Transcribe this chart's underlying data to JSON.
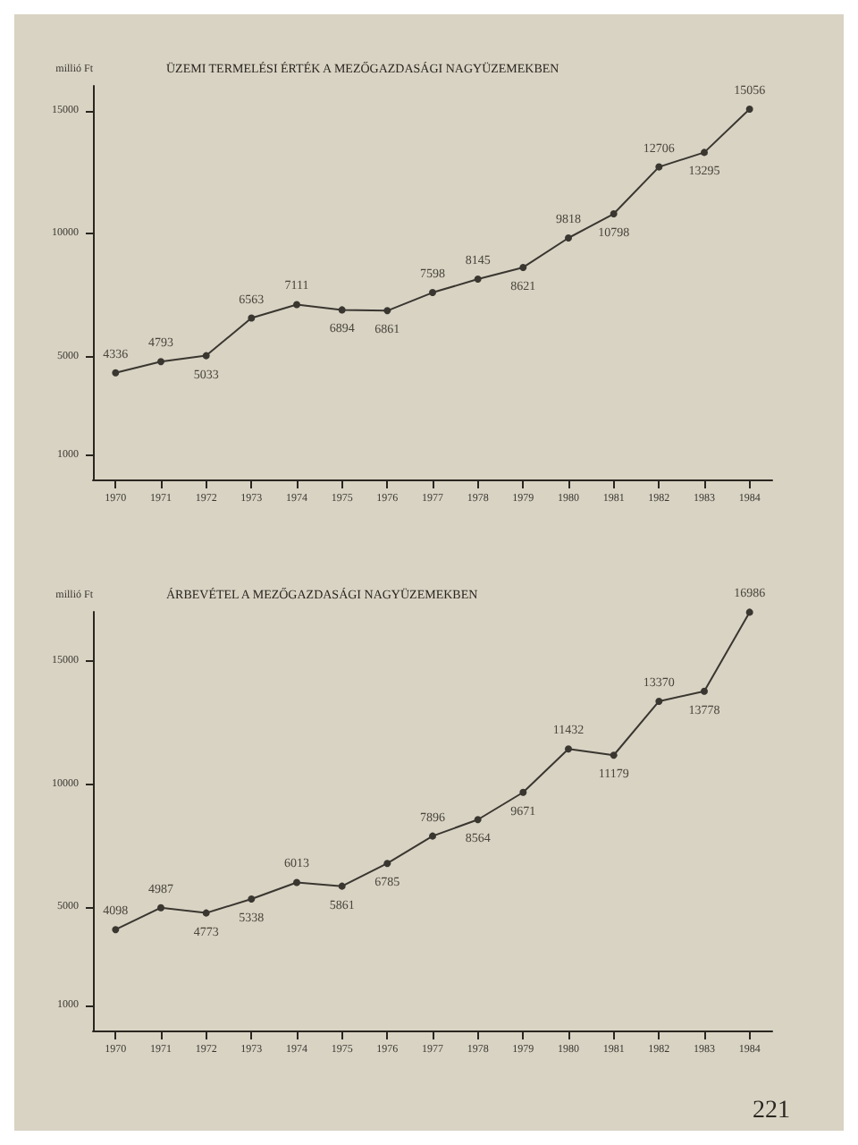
{
  "chart_data": [
    {
      "type": "line",
      "title": "ÜZEMI TERMELÉSI ÉRTÉK A MEZŐGAZDASÁGI NAGYÜZEMEKBEN",
      "ylabel": "millió Ft",
      "categories": [
        "1970",
        "1971",
        "1972",
        "1973",
        "1974",
        "1975",
        "1976",
        "1977",
        "1978",
        "1979",
        "1980",
        "1981",
        "1982",
        "1983",
        "1984"
      ],
      "series": [
        {
          "color": "#3a3630",
          "values": [
            4336,
            4793,
            5033,
            6563,
            7111,
            6894,
            6861,
            7598,
            8145,
            8621,
            9818,
            10798,
            12706,
            13295,
            15056
          ]
        }
      ],
      "ylim": [
        0,
        16000
      ],
      "yticks": [
        1000,
        5000,
        10000,
        15000
      ],
      "grid": false,
      "marker": "circle",
      "line_style": "solid",
      "data_labels": true
    },
    {
      "type": "line",
      "title": "ÁRBEVÉTEL A MEZŐGAZDASÁGI NAGYÜZEMEKBEN",
      "ylabel": "millió Ft",
      "categories": [
        "1970",
        "1971",
        "1972",
        "1973",
        "1974",
        "1975",
        "1976",
        "1977",
        "1978",
        "1979",
        "1980",
        "1981",
        "1982",
        "1983",
        "1984"
      ],
      "series": [
        {
          "color": "#3a3630",
          "values": [
            4098,
            4987,
            4773,
            5338,
            6013,
            5861,
            6785,
            7896,
            8564,
            9671,
            11432,
            11179,
            13370,
            13778,
            16986
          ]
        }
      ],
      "ylim": [
        0,
        17000
      ],
      "yticks": [
        1000,
        5000,
        10000,
        15000
      ],
      "grid": false,
      "marker": "circle",
      "line_style": "solid",
      "data_labels": true,
      "annotations": [
        "221"
      ]
    }
  ]
}
